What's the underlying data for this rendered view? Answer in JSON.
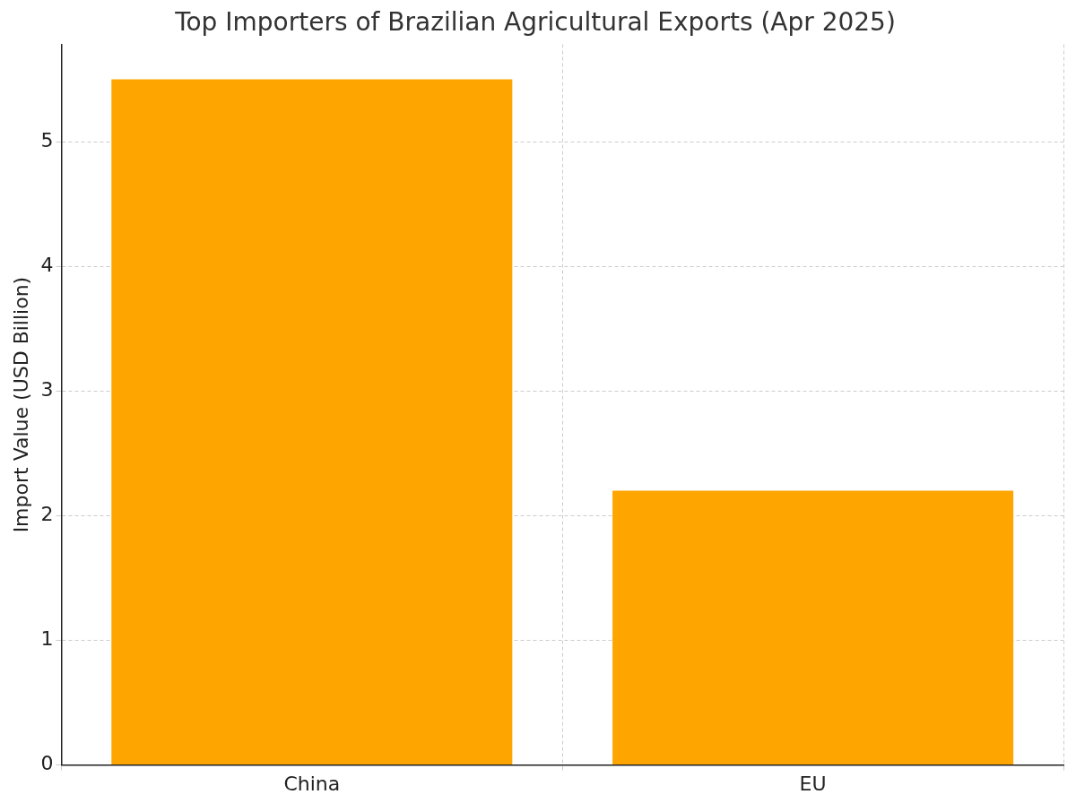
{
  "chart_data": {
    "type": "bar",
    "title": "Top Importers of Brazilian Agricultural Exports (Apr 2025)",
    "ylabel": "Import Value (USD Billion)",
    "categories": [
      "China",
      "EU"
    ],
    "values": [
      5.5,
      2.2
    ],
    "color": "#ffa500",
    "ylim": [
      0,
      5.78
    ],
    "yticks": [
      0,
      1,
      2,
      3,
      4,
      5
    ],
    "grid": true
  }
}
